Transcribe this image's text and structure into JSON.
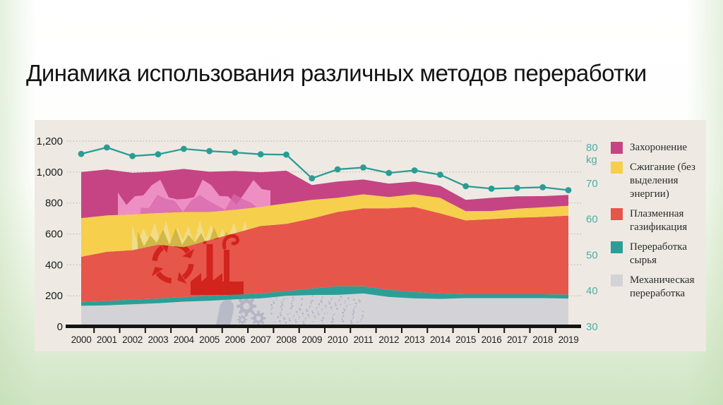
{
  "slide": {
    "title": "Динамика использования различных методов переработки"
  },
  "chart_data": {
    "type": "area",
    "stacked": true,
    "title": "Динамика использования различных методов переработки",
    "categories": [
      "2000",
      "2001",
      "2002",
      "2003",
      "2004",
      "2005",
      "2006",
      "2007",
      "2008",
      "2009",
      "2010",
      "2011",
      "2012",
      "2013",
      "2014",
      "2015",
      "2016",
      "2017",
      "2018",
      "2019"
    ],
    "series": [
      {
        "name": "Механическая переработка",
        "color": "#d3d2d7",
        "values": [
          135,
          138,
          145,
          152,
          162,
          168,
          177,
          183,
          200,
          205,
          206,
          215,
          192,
          183,
          180,
          185,
          185,
          185,
          185,
          182
        ]
      },
      {
        "name": "Переработка сырья",
        "color": "#2b9f97",
        "values": [
          25,
          28,
          30,
          30,
          30,
          32,
          30,
          32,
          30,
          42,
          56,
          46,
          46,
          41,
          35,
          25,
          25,
          25,
          25,
          26
        ]
      },
      {
        "name": "Плазменная газификация",
        "color": "#e6564b",
        "values": [
          292,
          318,
          320,
          348,
          322,
          360,
          398,
          436,
          435,
          453,
          480,
          504,
          527,
          550,
          518,
          477,
          486,
          495,
          500,
          510
        ]
      },
      {
        "name": "Сжигание (без выделения энергии)",
        "color": "#f6cf4d",
        "values": [
          250,
          235,
          232,
          205,
          228,
          182,
          152,
          124,
          132,
          120,
          91,
          91,
          73,
          82,
          100,
          60,
          52,
          58,
          62,
          64
        ]
      },
      {
        "name": "Захоронение",
        "color": "#c64484",
        "values": [
          298,
          298,
          268,
          268,
          278,
          260,
          250,
          224,
          212,
          96,
          106,
          96,
          87,
          83,
          78,
          73,
          85,
          80,
          72,
          70
        ]
      }
    ],
    "line_series": {
      "label": "kg",
      "axis": "right",
      "color": "#2b9c95",
      "values": [
        78.2,
        80,
        77.6,
        78.1,
        79.6,
        79,
        78.6,
        78.1,
        78,
        71.4,
        73.9,
        74.4,
        72.9,
        73.6,
        72.4,
        69.2,
        68.5,
        68.7,
        68.9,
        68.1
      ]
    },
    "left_axis": {
      "min": 0,
      "max": 1200,
      "tick_values": [
        0,
        200,
        400,
        600,
        800,
        1000,
        1200
      ],
      "tick_labels": [
        "0",
        "200",
        "400",
        "600",
        "800",
        "1,000",
        "1,200"
      ],
      "color": "#1a1a1a"
    },
    "right_axis": {
      "min": 30,
      "max": 80,
      "tick_values": [
        30,
        40,
        50,
        60,
        70,
        80
      ],
      "tick_labels": [
        "30",
        "40",
        "50",
        "60",
        "70",
        "80"
      ],
      "unit_label": "kg",
      "color": "#4fada6"
    },
    "x_axis": {
      "labels": [
        "2000",
        "2001",
        "2002",
        "2003",
        "2004",
        "2005",
        "2006",
        "2007",
        "2008",
        "2009",
        "2010",
        "2011",
        "2012",
        "2013",
        "2014",
        "2015",
        "2016",
        "2017",
        "2018",
        "2019"
      ],
      "color": "#222222"
    },
    "grid": {
      "horizontal": true,
      "style": "dotted",
      "color": "#b3ada1"
    },
    "legend_position": "right",
    "panel_background": "#eeeae3",
    "decoration_icons": [
      "pink-mountains",
      "flames",
      "recycling-arrows-icon",
      "factory-icon",
      "bottle-icon",
      "gears-icon",
      "litter-speckles"
    ]
  },
  "legend": {
    "items": [
      {
        "label": "Захоронение",
        "color": "#c64484"
      },
      {
        "label": "Сжигание (без выделения энергии)",
        "color": "#f6cf4d"
      },
      {
        "label": "Плазменная газификация",
        "color": "#e6564b"
      },
      {
        "label": "Переработка сырья",
        "color": "#2b9f97"
      },
      {
        "label": "Механическая переработка",
        "color": "#d3d2d7"
      }
    ]
  }
}
